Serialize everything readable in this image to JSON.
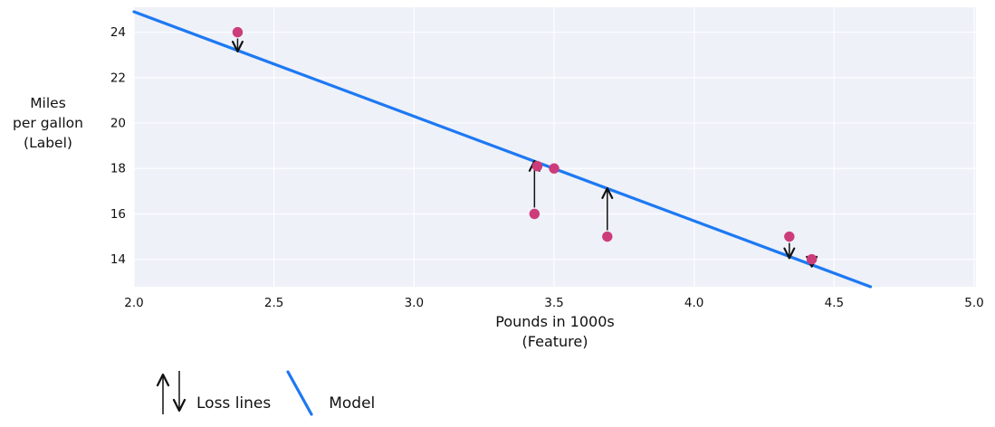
{
  "chart_data": {
    "type": "scatter",
    "title": "",
    "ylabel_lines": [
      "Miles",
      "per gallon",
      "(Label)"
    ],
    "xlabel_lines": [
      "Pounds in 1000s",
      "(Feature)"
    ],
    "axes": {
      "xlim": [
        2.0,
        5.0
      ],
      "ylim": [
        12.79,
        25.1
      ],
      "grid": true,
      "x_ticks": [
        {
          "value": 2.0,
          "label": "2.0"
        },
        {
          "value": 2.5,
          "label": "2.5"
        },
        {
          "value": 3.0,
          "label": "3.0"
        },
        {
          "value": 3.5,
          "label": "3.5"
        },
        {
          "value": 4.0,
          "label": "4.0"
        },
        {
          "value": 4.5,
          "label": "4.5"
        },
        {
          "value": 5.0,
          "label": "5.0"
        }
      ],
      "y_ticks": [
        {
          "value": 14,
          "label": "14"
        },
        {
          "value": 16,
          "label": "16"
        },
        {
          "value": 18,
          "label": "18"
        },
        {
          "value": 20,
          "label": "20"
        },
        {
          "value": 22,
          "label": "22"
        },
        {
          "value": 24,
          "label": "24"
        }
      ]
    },
    "points": [
      {
        "x": 2.37,
        "y": 24
      },
      {
        "x": 3.43,
        "y": 16
      },
      {
        "x": 3.44,
        "y": 18.1
      },
      {
        "x": 3.5,
        "y": 18
      },
      {
        "x": 3.69,
        "y": 15
      },
      {
        "x": 4.34,
        "y": 15
      },
      {
        "x": 4.42,
        "y": 14
      }
    ],
    "model_line": {
      "x1": 2.0,
      "y1": 24.9,
      "x2": 4.63,
      "y2": 12.79
    },
    "loss_lines": [
      {
        "x": 2.37,
        "from": 24,
        "to": 23.19,
        "direction": "down"
      },
      {
        "x": 3.43,
        "from": 16,
        "to": 18.29,
        "direction": "up"
      },
      {
        "x": 3.69,
        "from": 15,
        "to": 17.09,
        "direction": "up"
      },
      {
        "x": 4.34,
        "from": 15,
        "to": 14.09,
        "direction": "down"
      },
      {
        "x": 4.42,
        "from": 14,
        "to": 13.72,
        "direction": "down"
      }
    ],
    "legend": {
      "loss_label": "Loss lines",
      "model_label": "Model"
    },
    "colors": {
      "point": "#cd3c7a",
      "model": "#1d79f3",
      "plot_bg": "#eef1f8",
      "grid": "#fcfdff",
      "text": "#111111"
    }
  }
}
